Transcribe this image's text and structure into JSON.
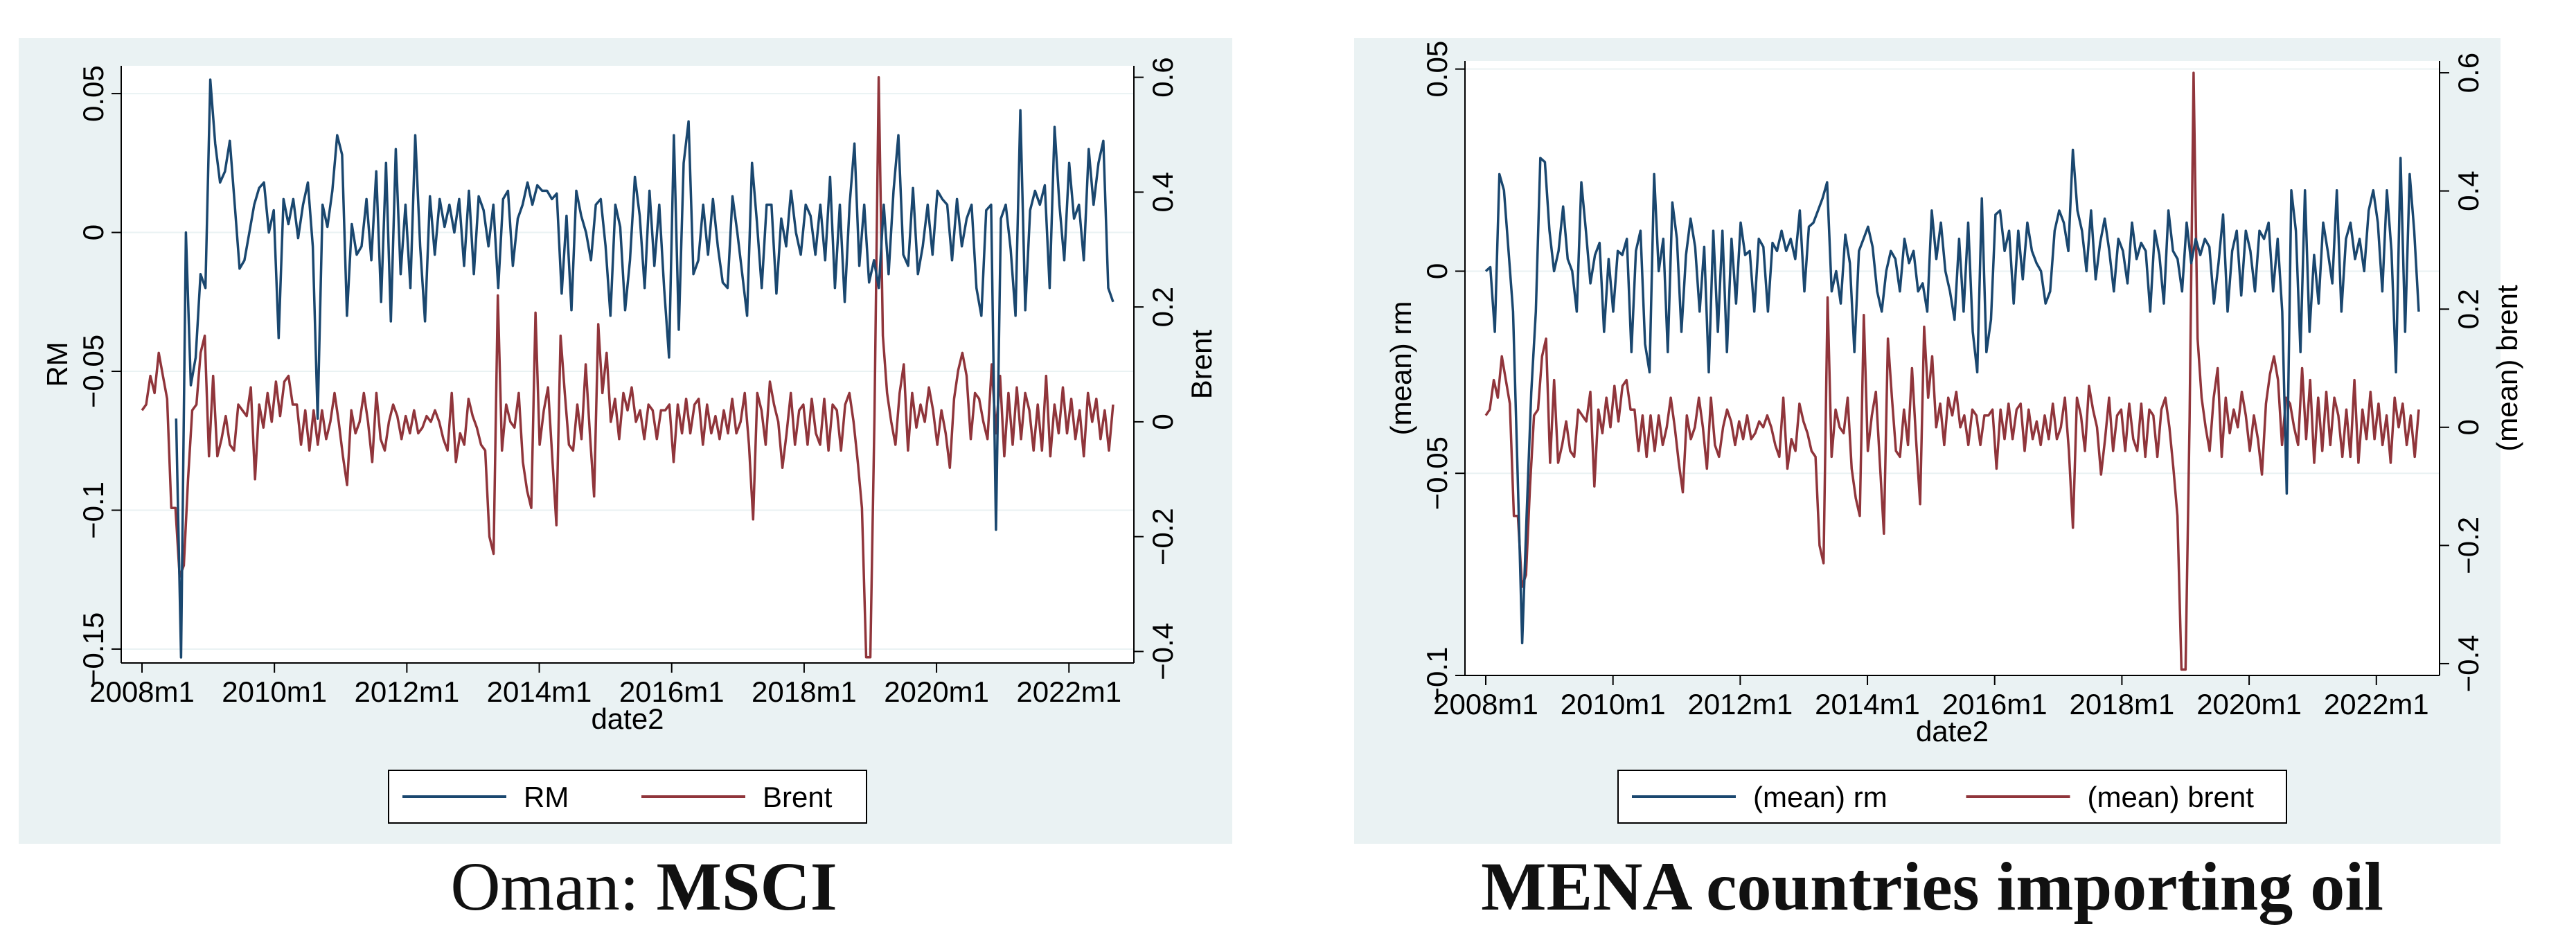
{
  "colors": {
    "rm": "#1a476f",
    "brent": "#90353b",
    "panel_bg": "#eaf2f3",
    "plot_bg": "#ffffff",
    "grid": "#eaf2f3"
  },
  "captions": [
    {
      "normal": "Oman: ",
      "bold": "MSCI"
    },
    {
      "normal": "",
      "bold": "MENA countries importing oil"
    }
  ],
  "chart_data": [
    {
      "type": "line",
      "xlabel": "date2",
      "ylabel_left": "RM",
      "ylabel_right": "Brent",
      "x_ticks": [
        "2008m1",
        "2010m1",
        "2012m1",
        "2014m1",
        "2016m1",
        "2018m1",
        "2020m1",
        "2022m1"
      ],
      "x_start": "2008m1",
      "x_range_months": [
        0,
        176
      ],
      "ylim_left": [
        -0.155,
        0.06
      ],
      "yticks_left": [
        0.05,
        0,
        -0.05,
        -0.1,
        -0.15
      ],
      "ytick_labels_left": [
        "0.05",
        "0",
        "-0.05",
        "-0.1",
        "-0.15"
      ],
      "ylim_right": [
        -0.42,
        0.62
      ],
      "yticks_right": [
        0.6,
        0.4,
        0.2,
        0,
        -0.2,
        -0.4
      ],
      "ytick_labels_right": [
        "0.6",
        "0.4",
        "0.2",
        "0",
        "-0.2",
        "-0.4"
      ],
      "legend": [
        "RM",
        "Brent"
      ],
      "series": [
        {
          "name": "RM",
          "axis": "left",
          "color": "#1a476f",
          "values": [
            null,
            null,
            null,
            null,
            null,
            null,
            null,
            -0.067,
            -0.153,
            0,
            -0.055,
            -0.045,
            -0.015,
            -0.02,
            0.055,
            0.032,
            0.018,
            0.022,
            0.033,
            0.01,
            -0.013,
            -0.01,
            0,
            0.01,
            0.016,
            0.018,
            0,
            0.008,
            -0.038,
            0.012,
            0.003,
            0.012,
            -0.002,
            0.01,
            0.018,
            -0.005,
            -0.067,
            0.01,
            0.002,
            0.015,
            0.035,
            0.028,
            -0.03,
            0.003,
            -0.008,
            -0.005,
            0.012,
            -0.01,
            0.022,
            -0.025,
            0.025,
            -0.032,
            0.03,
            -0.015,
            0.01,
            -0.02,
            0.035,
            -0.005,
            -0.032,
            0.013,
            -0.008,
            0.012,
            0.002,
            0.01,
            0,
            0.012,
            -0.012,
            0.015,
            -0.015,
            0.013,
            0.008,
            -0.005,
            0.01,
            -0.02,
            0.012,
            0.015,
            -0.012,
            0.005,
            0.01,
            0.018,
            0.01,
            0.017,
            0.015,
            0.015,
            0.012,
            0.014,
            -0.022,
            0.006,
            -0.028,
            0.015,
            0.006,
            0,
            -0.01,
            0.01,
            0.012,
            -0.005,
            -0.03,
            0.01,
            0.002,
            -0.028,
            -0.01,
            0.02,
            0.006,
            -0.02,
            0.015,
            -0.012,
            0.01,
            -0.02,
            -0.045,
            0.035,
            -0.035,
            0.025,
            0.04,
            -0.015,
            -0.01,
            0.01,
            -0.008,
            0.012,
            -0.005,
            -0.018,
            -0.02,
            0.013,
            0,
            -0.015,
            -0.03,
            0.025,
            0.004,
            -0.02,
            0.01,
            0.01,
            -0.022,
            0.005,
            -0.005,
            0.015,
            0,
            -0.008,
            0.01,
            0.006,
            -0.008,
            0.01,
            -0.01,
            0.02,
            -0.02,
            0.01,
            -0.025,
            0.01,
            0.032,
            -0.012,
            0.01,
            -0.018,
            -0.01,
            -0.02,
            0.01,
            -0.015,
            0.015,
            0.035,
            -0.008,
            -0.012,
            0.016,
            -0.015,
            -0.005,
            0.01,
            -0.008,
            0.015,
            0.012,
            0.01,
            -0.01,
            0.012,
            -0.005,
            0.005,
            0.01,
            -0.02,
            -0.03,
            0.008,
            0.01,
            -0.107,
            0.005,
            0.01,
            -0.006,
            -0.03,
            0.044,
            -0.028,
            0.008,
            0.015,
            0.01,
            0.017,
            -0.02,
            0.038,
            0.01,
            -0.01,
            0.025,
            0.005,
            0.01,
            -0.01,
            0.03,
            0.01,
            0.025,
            0.033,
            -0.02,
            -0.025
          ]
        },
        {
          "name": "Brent",
          "axis": "right",
          "color": "#90353b",
          "values": [
            0.02,
            0.03,
            0.08,
            0.05,
            0.12,
            0.08,
            0.04,
            -0.15,
            -0.15,
            -0.27,
            -0.25,
            -0.1,
            0.02,
            0.03,
            0.12,
            0.15,
            -0.06,
            0.08,
            -0.06,
            -0.03,
            0.01,
            -0.04,
            -0.05,
            0.03,
            0.02,
            0.01,
            0.06,
            -0.1,
            0.03,
            -0.01,
            0.05,
            0,
            0.07,
            0.01,
            0.07,
            0.08,
            0.03,
            0.03,
            -0.04,
            0.02,
            -0.05,
            0.02,
            -0.04,
            0.02,
            -0.03,
            0,
            0.05,
            0,
            -0.06,
            -0.11,
            0.02,
            -0.02,
            0,
            0.05,
            0,
            -0.07,
            0.05,
            -0.03,
            -0.05,
            0,
            0.03,
            0.01,
            -0.03,
            0.01,
            -0.02,
            0.02,
            -0.02,
            -0.01,
            0.01,
            0,
            0.02,
            0,
            -0.03,
            -0.05,
            0.05,
            -0.07,
            -0.02,
            -0.04,
            0.04,
            0.01,
            -0.01,
            -0.04,
            -0.05,
            -0.2,
            -0.23,
            0.22,
            -0.05,
            0.03,
            0,
            -0.01,
            0.05,
            -0.07,
            -0.12,
            -0.15,
            0.19,
            -0.04,
            0.02,
            0.06,
            -0.06,
            -0.18,
            0.15,
            0.05,
            -0.04,
            -0.05,
            0.03,
            -0.03,
            0.1,
            -0.02,
            -0.13,
            0.17,
            0.05,
            0.12,
            0,
            0.04,
            -0.03,
            0.05,
            0.02,
            0.06,
            0,
            0.02,
            -0.03,
            0.03,
            0.02,
            -0.03,
            0.02,
            0.02,
            0.03,
            -0.07,
            0.03,
            -0.02,
            0.04,
            -0.02,
            0.03,
            0.04,
            -0.04,
            0.03,
            -0.02,
            0.01,
            -0.03,
            0.02,
            -0.02,
            0.04,
            -0.02,
            0,
            0.05,
            -0.04,
            -0.17,
            0.05,
            0.02,
            -0.04,
            0.07,
            0.03,
            0,
            -0.08,
            -0.02,
            0.05,
            -0.04,
            0.02,
            0.03,
            -0.04,
            0.04,
            -0.02,
            -0.04,
            0.04,
            -0.05,
            0.03,
            0.02,
            -0.05,
            0.03,
            0.05,
            0,
            -0.07,
            -0.15,
            -0.41,
            -0.41,
            0.01,
            0.6,
            0.15,
            0.05,
            0,
            -0.04,
            0.05,
            0.1,
            -0.05,
            0.05,
            -0.01,
            0.03,
            0,
            0.06,
            0.02,
            -0.04,
            0.02,
            -0.02,
            -0.08,
            0.04,
            0.09,
            0.12,
            0.08,
            -0.03,
            0.05,
            0.04,
            0,
            -0.03,
            0.1,
            -0.02,
            0.08,
            -0.06,
            0.05,
            -0.04,
            0.06,
            -0.03,
            0.05,
            0.02,
            -0.05,
            0.03,
            -0.05,
            0.08,
            -0.06,
            0.03,
            -0.02,
            0.06,
            -0.02,
            0.04,
            -0.03,
            0.02,
            -0.06,
            0.05,
            0,
            0.04,
            -0.03,
            0.02,
            -0.05,
            0.03
          ]
        }
      ]
    },
    {
      "type": "line",
      "xlabel": "date2",
      "ylabel_left": "(mean) rm",
      "ylabel_right": "(mean) brent",
      "x_ticks": [
        "2008m1",
        "2010m1",
        "2012m1",
        "2014m1",
        "2016m1",
        "2018m1",
        "2020m1",
        "2022m1"
      ],
      "x_start": "2008m1",
      "x_range_months": [
        0,
        176
      ],
      "ylim_left": [
        -0.1,
        0.052
      ],
      "yticks_left": [
        0.05,
        0,
        -0.05,
        -0.1
      ],
      "ytick_labels_left": [
        "0.05",
        "0",
        "-0.05",
        "-0.1"
      ],
      "ylim_right": [
        -0.42,
        0.62
      ],
      "yticks_right": [
        0.6,
        0.4,
        0.2,
        0,
        -0.2,
        -0.4
      ],
      "ytick_labels_right": [
        "0.6",
        "0.4",
        "0.2",
        "0",
        "-0.2",
        "-0.4"
      ],
      "legend": [
        "(mean) rm",
        "(mean) brent"
      ],
      "series": [
        {
          "name": "(mean) rm",
          "axis": "left",
          "color": "#1a476f",
          "values": [
            0,
            0.001,
            -0.015,
            0.024,
            0.02,
            0.005,
            -0.01,
            -0.05,
            -0.092,
            -0.06,
            -0.03,
            -0.01,
            0.028,
            0.027,
            0.01,
            0,
            0.005,
            0.016,
            0.003,
            0,
            -0.01,
            0.022,
            0.01,
            -0.003,
            0.004,
            0.007,
            -0.015,
            0.003,
            -0.01,
            0.005,
            0.004,
            0.008,
            -0.02,
            0.005,
            0.01,
            -0.018,
            -0.025,
            0.024,
            0,
            0.008,
            -0.02,
            0.017,
            0.008,
            -0.015,
            0.004,
            0.013,
            0.006,
            -0.01,
            0.006,
            -0.025,
            0.01,
            -0.015,
            0.01,
            -0.02,
            0.008,
            -0.008,
            0.012,
            0.004,
            0.005,
            -0.01,
            0.008,
            0.006,
            -0.01,
            0.007,
            0.005,
            0.01,
            0.005,
            0.008,
            0.003,
            0.015,
            -0.005,
            0.011,
            0.012,
            0.015,
            0.018,
            0.022,
            -0.005,
            0,
            -0.008,
            0.009,
            0.002,
            -0.02,
            0.005,
            0.008,
            0.011,
            0.006,
            -0.005,
            -0.01,
            0,
            0.005,
            0.003,
            -0.005,
            0.008,
            0.002,
            0.005,
            -0.005,
            -0.003,
            -0.01,
            0.015,
            0.003,
            0.012,
            0,
            -0.005,
            -0.012,
            0.008,
            -0.01,
            0.012,
            -0.015,
            -0.025,
            0.018,
            -0.02,
            -0.012,
            0.014,
            0.015,
            0.005,
            0.01,
            -0.008,
            0.01,
            -0.002,
            0.012,
            0.005,
            0.002,
            0,
            -0.008,
            -0.005,
            0.01,
            0.015,
            0.012,
            0.005,
            0.03,
            0.015,
            0.01,
            0,
            0.015,
            -0.002,
            0.007,
            0.013,
            0.005,
            -0.005,
            0.008,
            0.005,
            -0.003,
            0.012,
            0.003,
            0.007,
            0.005,
            -0.01,
            0.01,
            0.004,
            -0.008,
            0.015,
            0.005,
            0.003,
            -0.005,
            0.012,
            0.002,
            0.008,
            0.004,
            0.008,
            0.006,
            -0.008,
            0.002,
            0.014,
            -0.01,
            0.005,
            0.01,
            -0.006,
            0.01,
            0.005,
            -0.005,
            0.01,
            0.008,
            0.012,
            -0.005,
            0.008,
            -0.01,
            -0.055,
            0.02,
            0.01,
            -0.02,
            0.02,
            -0.015,
            0.004,
            -0.008,
            0.012,
            0.005,
            -0.003,
            0.02,
            -0.01,
            0.008,
            0.012,
            0.003,
            0.008,
            0,
            0.015,
            0.02,
            0.012,
            -0.005,
            0.02,
            0.005,
            -0.025,
            0.028,
            -0.015,
            0.024,
            0.01,
            -0.01
          ]
        },
        {
          "name": "(mean) brent",
          "axis": "right",
          "color": "#90353b",
          "values": [
            0.02,
            0.03,
            0.08,
            0.05,
            0.12,
            0.08,
            0.04,
            -0.15,
            -0.15,
            -0.27,
            -0.25,
            -0.1,
            0.02,
            0.03,
            0.12,
            0.15,
            -0.06,
            0.08,
            -0.06,
            -0.03,
            0.01,
            -0.04,
            -0.05,
            0.03,
            0.02,
            0.01,
            0.06,
            -0.1,
            0.03,
            -0.01,
            0.05,
            0,
            0.07,
            0.01,
            0.07,
            0.08,
            0.03,
            0.03,
            -0.04,
            0.02,
            -0.05,
            0.02,
            -0.04,
            0.02,
            -0.03,
            0,
            0.05,
            0,
            -0.06,
            -0.11,
            0.02,
            -0.02,
            0,
            0.05,
            0,
            -0.07,
            0.05,
            -0.03,
            -0.05,
            0,
            0.03,
            0.01,
            -0.03,
            0.01,
            -0.02,
            0.02,
            -0.02,
            -0.01,
            0.01,
            0,
            0.02,
            0,
            -0.03,
            -0.05,
            0.05,
            -0.07,
            -0.02,
            -0.04,
            0.04,
            0.01,
            -0.01,
            -0.04,
            -0.05,
            -0.2,
            -0.23,
            0.22,
            -0.05,
            0.03,
            0,
            -0.01,
            0.05,
            -0.07,
            -0.12,
            -0.15,
            0.19,
            -0.04,
            0.02,
            0.06,
            -0.06,
            -0.18,
            0.15,
            0.05,
            -0.04,
            -0.05,
            0.03,
            -0.03,
            0.1,
            -0.02,
            -0.13,
            0.17,
            0.05,
            0.12,
            0,
            0.04,
            -0.03,
            0.05,
            0.02,
            0.06,
            0,
            0.02,
            -0.03,
            0.03,
            0.02,
            -0.03,
            0.02,
            0.02,
            0.03,
            -0.07,
            0.03,
            -0.02,
            0.04,
            -0.02,
            0.03,
            0.04,
            -0.04,
            0.03,
            -0.02,
            0.01,
            -0.03,
            0.02,
            -0.02,
            0.04,
            -0.02,
            0,
            0.05,
            -0.04,
            -0.17,
            0.05,
            0.02,
            -0.04,
            0.07,
            0.03,
            0,
            -0.08,
            -0.02,
            0.05,
            -0.04,
            0.02,
            0.03,
            -0.04,
            0.04,
            -0.02,
            -0.04,
            0.04,
            -0.05,
            0.03,
            0.02,
            -0.05,
            0.03,
            0.05,
            0,
            -0.07,
            -0.15,
            -0.41,
            -0.41,
            0.01,
            0.6,
            0.15,
            0.05,
            0,
            -0.04,
            0.05,
            0.1,
            -0.05,
            0.05,
            -0.01,
            0.03,
            0,
            0.06,
            0.02,
            -0.04,
            0.02,
            -0.02,
            -0.08,
            0.04,
            0.09,
            0.12,
            0.08,
            -0.03,
            0.05,
            0.04,
            0,
            -0.03,
            0.1,
            -0.02,
            0.08,
            -0.06,
            0.05,
            -0.04,
            0.06,
            -0.03,
            0.05,
            0.02,
            -0.05,
            0.03,
            -0.05,
            0.08,
            -0.06,
            0.03,
            -0.02,
            0.06,
            -0.02,
            0.04,
            -0.03,
            0.02,
            -0.06,
            0.05,
            0,
            0.04,
            -0.03,
            0.02,
            -0.05,
            0.03
          ]
        }
      ]
    }
  ]
}
